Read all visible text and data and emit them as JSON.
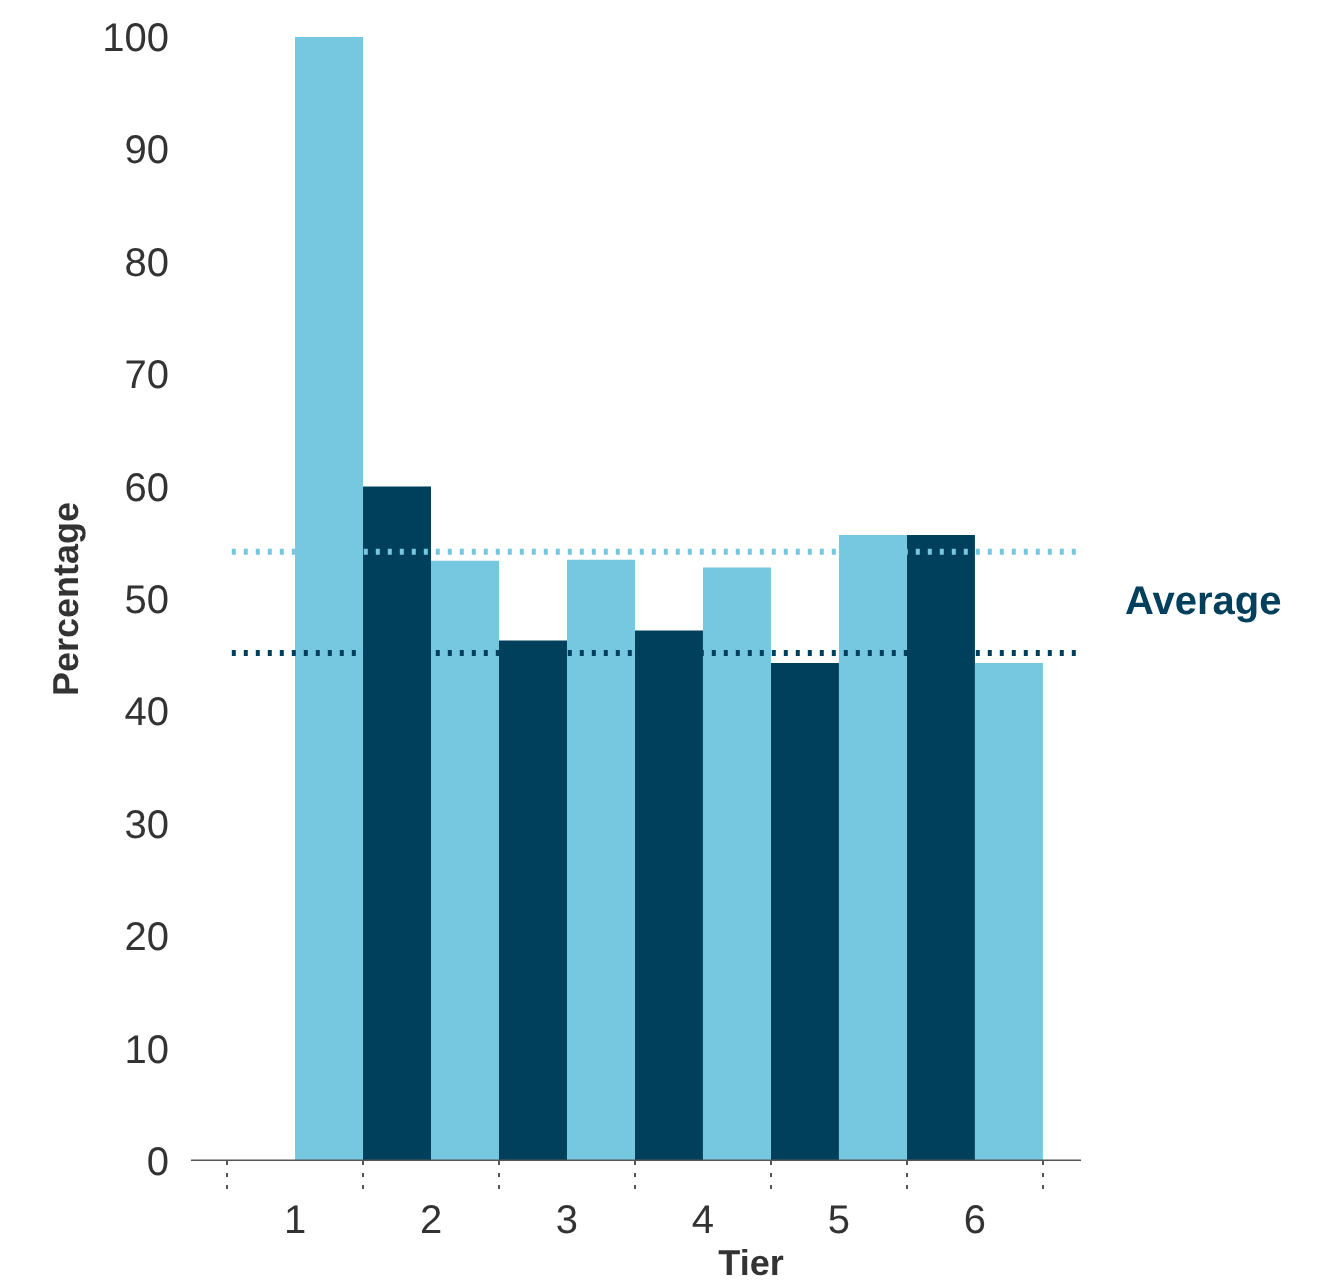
{
  "chart_data": {
    "type": "bar",
    "xlabel": "Tier",
    "ylabel": "Percentage",
    "categories": [
      "1",
      "2",
      "3",
      "4",
      "5",
      "6"
    ],
    "series": [
      {
        "color": "#00405c",
        "values": [
          null,
          60,
          46.3,
          47.2,
          44.3,
          55.7
        ]
      },
      {
        "color": "#76c8e0",
        "values": [
          100,
          53.4,
          53.5,
          52.8,
          55.7,
          44.3
        ]
      }
    ],
    "ylim": [
      0,
      100
    ],
    "yticks": [
      0,
      10,
      20,
      30,
      40,
      50,
      60,
      70,
      80,
      90,
      100
    ],
    "ref_lines": [
      {
        "axis": "y",
        "value": 54.2,
        "color": "#76c8e0",
        "line_style": "dotted",
        "label": null
      },
      {
        "axis": "y",
        "value": 45.2,
        "color": "#00405c",
        "line_style": "dotted",
        "label": "Average"
      }
    ],
    "grid": false
  }
}
